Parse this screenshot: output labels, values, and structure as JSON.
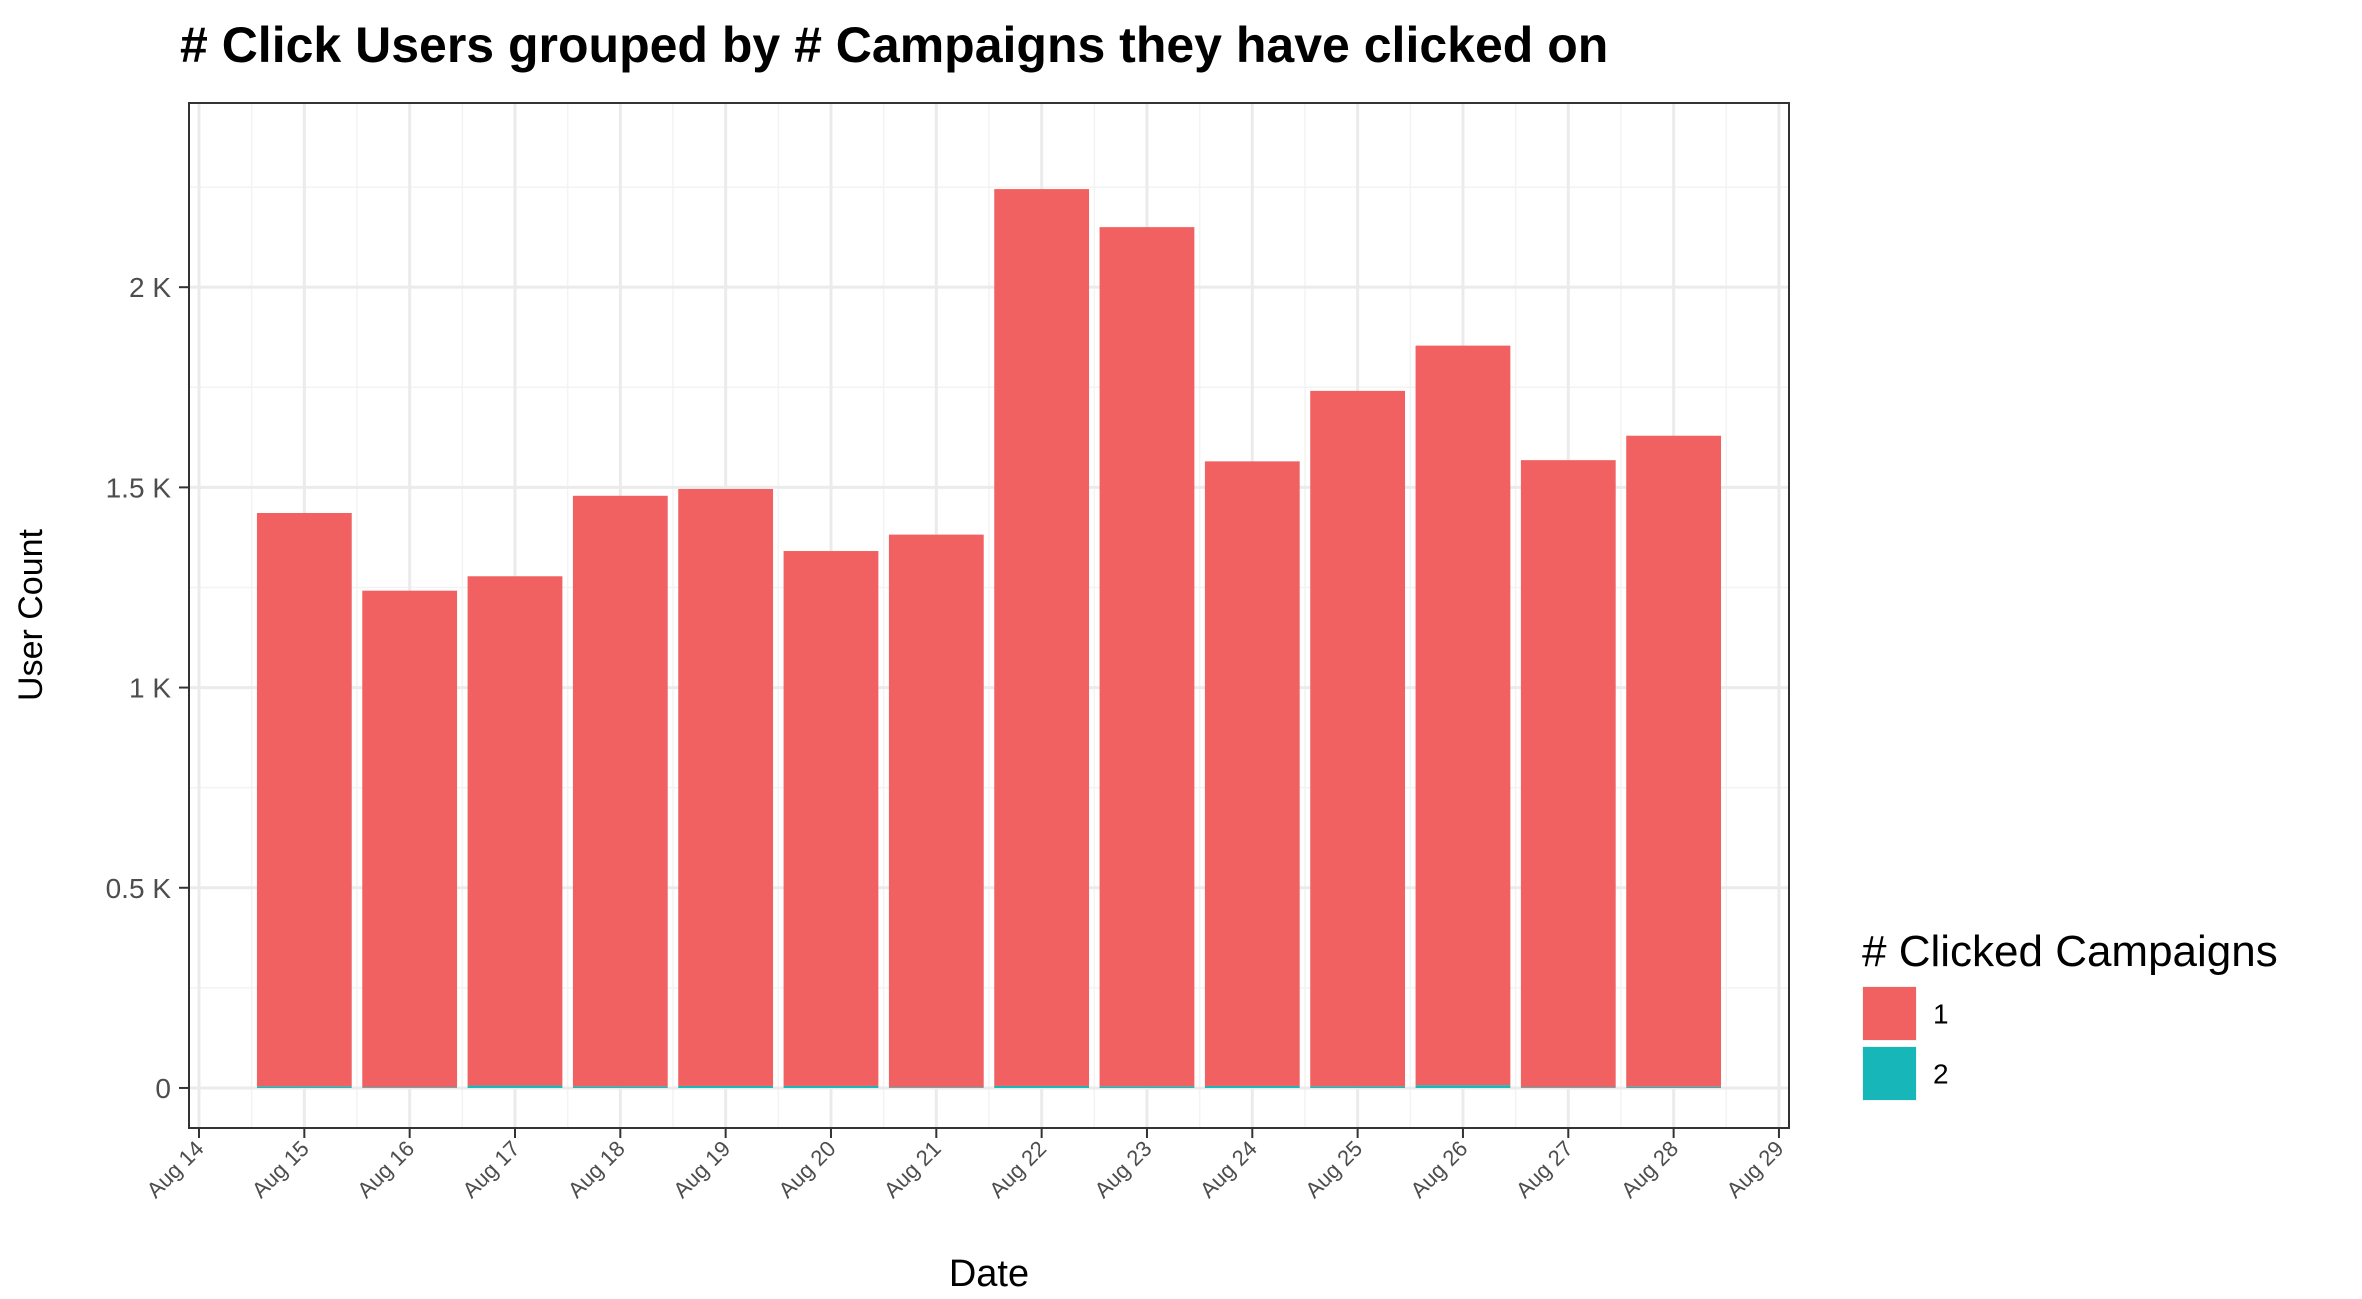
{
  "chart_data": {
    "type": "bar",
    "stacked": true,
    "title": "# Click Users grouped by # Campaigns they have clicked on",
    "xlabel": "Date",
    "ylabel": "User Count",
    "x_tick_labels": [
      "Aug 14",
      "Aug 15",
      "Aug 16",
      "Aug 17",
      "Aug 18",
      "Aug 19",
      "Aug 20",
      "Aug 21",
      "Aug 22",
      "Aug 23",
      "Aug 24",
      "Aug 25",
      "Aug 26",
      "Aug 27",
      "Aug 28",
      "Aug 29"
    ],
    "y_tick_labels": [
      "0",
      "0.5 K",
      "1 K",
      "1.5 K",
      "2 K"
    ],
    "y_ticks": [
      0,
      500,
      1000,
      1500,
      2000
    ],
    "ylim": [
      -100,
      2460
    ],
    "categories": [
      "Aug 15",
      "Aug 16",
      "Aug 17",
      "Aug 18",
      "Aug 19",
      "Aug 20",
      "Aug 21",
      "Aug 22",
      "Aug 23",
      "Aug 24",
      "Aug 25",
      "Aug 26",
      "Aug 27",
      "Aug 28"
    ],
    "series": [
      {
        "name": "1",
        "color": "#F16161",
        "values": [
          1432,
          1240,
          1272,
          1475,
          1491,
          1336,
          1380,
          2240,
          2146,
          1560,
          1737,
          1847,
          1566,
          1626
        ]
      },
      {
        "name": "2",
        "color": "#17B6B9",
        "values": [
          4,
          2,
          6,
          4,
          5,
          5,
          2,
          5,
          4,
          5,
          4,
          7,
          2,
          3
        ]
      }
    ],
    "legend": {
      "title": "# Clicked Campaigns",
      "position": "right",
      "entries": [
        "1",
        "2"
      ]
    },
    "grid": true,
    "colors": {
      "panel_border": "#333333",
      "grid_major": "#EBEBEB",
      "grid_minor": "#F3F3F3",
      "background": "#FFFFFF"
    }
  }
}
